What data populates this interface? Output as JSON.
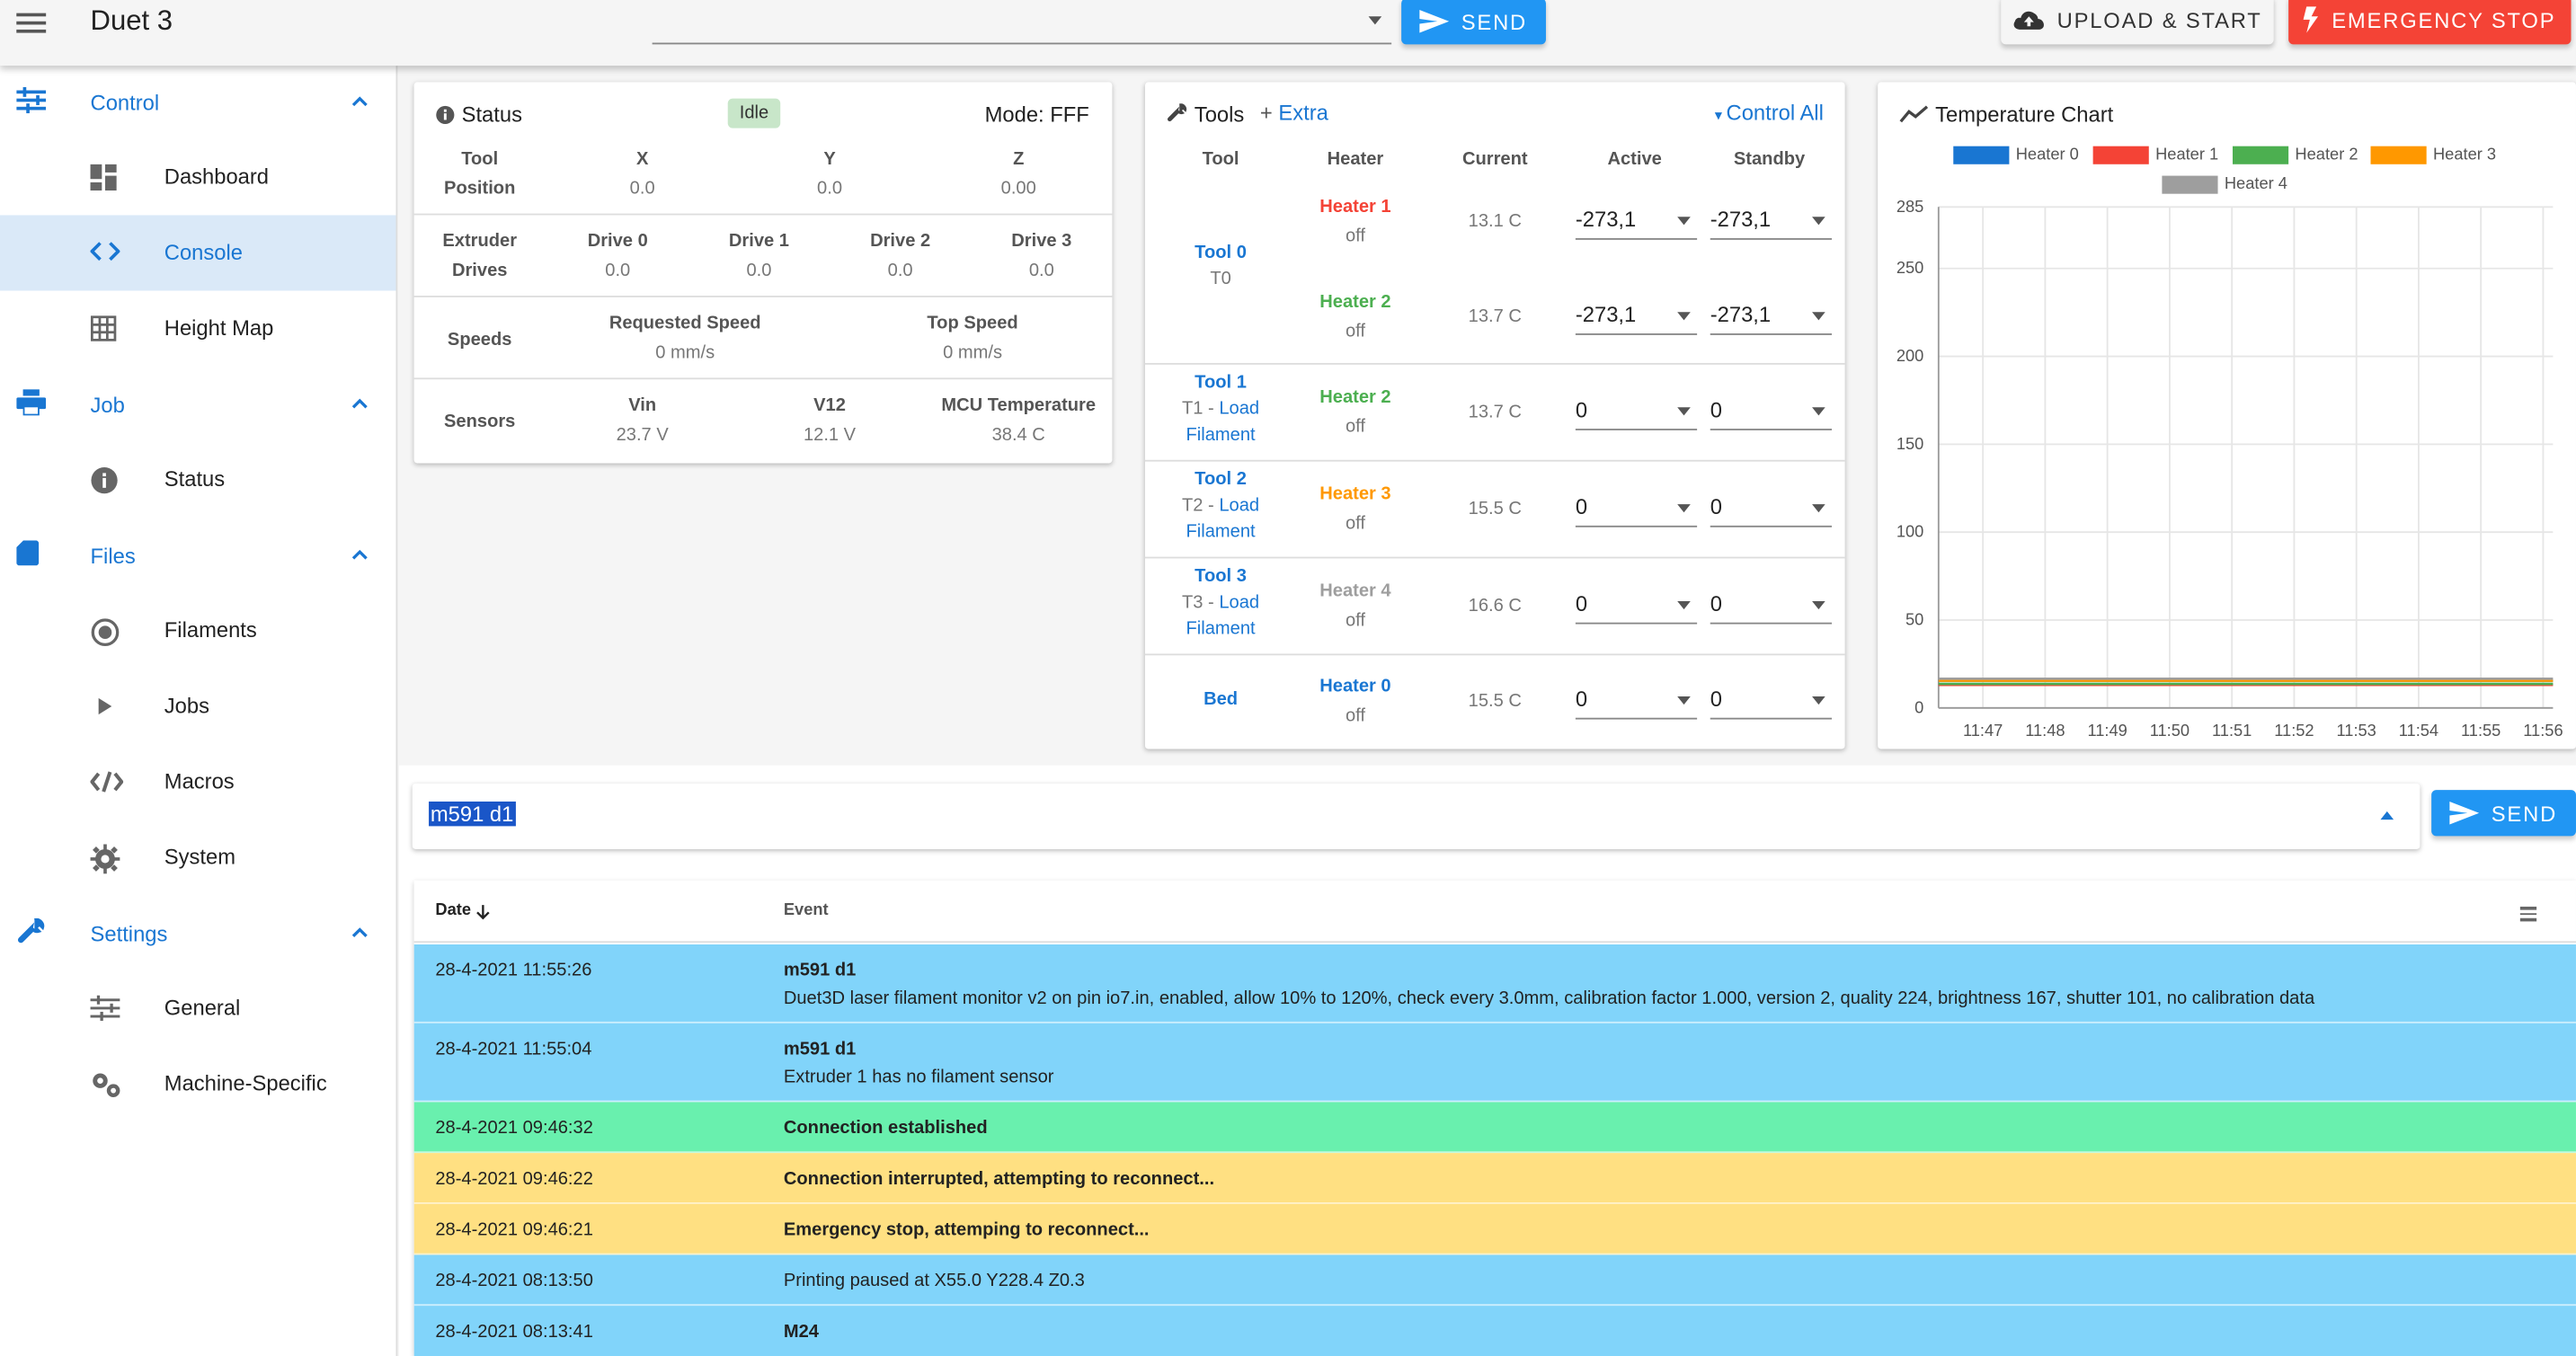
{
  "app": {
    "title": "Duet 3",
    "send_label": "SEND",
    "upload_label": "UPLOAD & START",
    "estop_label": "EMERGENCY STOP"
  },
  "sidebar": {
    "groups": [
      {
        "label": "Control",
        "items": [
          "Dashboard",
          "Console",
          "Height Map"
        ]
      },
      {
        "label": "Job",
        "items": [
          "Status"
        ]
      },
      {
        "label": "Files",
        "items": [
          "Filaments",
          "Jobs",
          "Macros",
          "System"
        ]
      },
      {
        "label": "Settings",
        "items": [
          "General",
          "Machine-Specific"
        ]
      }
    ],
    "active_item": "Console"
  },
  "status": {
    "title": "Status",
    "state": "Idle",
    "mode": "Mode: FFF",
    "tool_position": {
      "label1": "Tool",
      "label2": "Position",
      "axes": [
        {
          "name": "X",
          "value": "0.0"
        },
        {
          "name": "Y",
          "value": "0.0"
        },
        {
          "name": "Z",
          "value": "0.00"
        }
      ]
    },
    "extruder": {
      "label1": "Extruder",
      "label2": "Drives",
      "drives": [
        {
          "name": "Drive 0",
          "value": "0.0"
        },
        {
          "name": "Drive 1",
          "value": "0.0"
        },
        {
          "name": "Drive 2",
          "value": "0.0"
        },
        {
          "name": "Drive 3",
          "value": "0.0"
        }
      ]
    },
    "speeds": {
      "label": "Speeds",
      "requested_label": "Requested Speed",
      "requested": "0 mm/s",
      "top_label": "Top Speed",
      "top": "0 mm/s"
    },
    "sensors": {
      "label": "Sensors",
      "vin_label": "Vin",
      "vin": "23.7 V",
      "v12_label": "V12",
      "v12": "12.1 V",
      "mcu_label": "MCU Temperature",
      "mcu": "38.4 C"
    }
  },
  "tools": {
    "title": "Tools",
    "extra": "Extra",
    "control_all": "Control All",
    "headers": [
      "Tool",
      "Heater",
      "Current",
      "Active",
      "Standby"
    ],
    "load": "Load",
    "filament": "Filament",
    "rows": [
      {
        "tool": "Tool 0",
        "sub": "T0",
        "heater": "Heater 1",
        "heater_color": "#f44336",
        "state": "off",
        "current": "13.1 C",
        "active": "-273,1",
        "standby": "-273,1"
      },
      {
        "heater": "Heater 2",
        "heater_color": "#4caf50",
        "state": "off",
        "current": "13.7 C",
        "active": "-273,1",
        "standby": "-273,1"
      },
      {
        "tool": "Tool 1",
        "sub": "T1 - ",
        "heater": "Heater 2",
        "heater_color": "#4caf50",
        "state": "off",
        "current": "13.7 C",
        "active": "0",
        "standby": "0"
      },
      {
        "tool": "Tool 2",
        "sub": "T2 - ",
        "heater": "Heater 3",
        "heater_color": "#ff9800",
        "state": "off",
        "current": "15.5 C",
        "active": "0",
        "standby": "0"
      },
      {
        "tool": "Tool 3",
        "sub": "T3 - ",
        "heater": "Heater 4",
        "heater_color": "#9e9e9e",
        "state": "off",
        "current": "16.6 C",
        "active": "0",
        "standby": "0"
      },
      {
        "tool": "Bed",
        "heater": "Heater 0",
        "heater_color": "#1976d2",
        "state": "off",
        "current": "15.5 C",
        "active": "0",
        "standby": "0"
      }
    ]
  },
  "chart": {
    "title": "Temperature Chart"
  },
  "chart_data": {
    "type": "line",
    "title": "Temperature Chart",
    "xlabel": "",
    "ylabel": "",
    "ylim": [
      0,
      285
    ],
    "yticks": [
      0,
      50,
      100,
      150,
      200,
      250,
      285
    ],
    "x": [
      "11:47",
      "11:48",
      "11:49",
      "11:50",
      "11:51",
      "11:52",
      "11:53",
      "11:54",
      "11:55",
      "11:56"
    ],
    "series": [
      {
        "name": "Heater 0",
        "color": "#1976d2",
        "values": [
          15.5,
          15.5,
          15.5,
          15.5,
          15.5,
          15.5,
          15.5,
          15.5,
          15.5,
          15.5
        ]
      },
      {
        "name": "Heater 1",
        "color": "#f44336",
        "values": [
          13.1,
          13.1,
          13.1,
          13.1,
          13.1,
          13.1,
          13.1,
          13.1,
          13.1,
          13.1
        ]
      },
      {
        "name": "Heater 2",
        "color": "#4caf50",
        "values": [
          13.7,
          13.7,
          13.7,
          13.7,
          13.7,
          13.7,
          13.7,
          13.7,
          13.7,
          13.7
        ]
      },
      {
        "name": "Heater 3",
        "color": "#ff9800",
        "values": [
          15.5,
          15.5,
          15.5,
          15.5,
          15.5,
          15.5,
          15.5,
          15.5,
          15.5,
          15.5
        ]
      },
      {
        "name": "Heater 4",
        "color": "#9e9e9e",
        "values": [
          16.6,
          16.6,
          16.6,
          16.6,
          16.6,
          16.6,
          16.6,
          16.6,
          16.6,
          16.6
        ]
      }
    ],
    "grid": true,
    "legend": "top"
  },
  "console": {
    "command": "m591 d1",
    "send_label": "SEND",
    "date_header": "Date",
    "event_header": "Event",
    "rows": [
      {
        "date": "28-4-2021 11:55:26",
        "title": "m591 d1",
        "text": "Duet3D laser filament monitor v2 on pin io7.in, enabled, allow 10% to 120%, check every 3.0mm, calibration factor 1.000, version 2, quality 224, brightness 167, shutter 101, no calibration data",
        "kind": "info"
      },
      {
        "date": "28-4-2021 11:55:04",
        "title": "m591 d1",
        "text": "Extruder 1 has no filament sensor",
        "kind": "info"
      },
      {
        "date": "28-4-2021 09:46:32",
        "title": "Connection established",
        "text": "",
        "kind": "ok"
      },
      {
        "date": "28-4-2021 09:46:22",
        "title": "Connection interrupted, attempting to reconnect...",
        "text": "",
        "kind": "warn"
      },
      {
        "date": "28-4-2021 09:46:21",
        "title": "Emergency stop, attemping to reconnect...",
        "text": "",
        "kind": "warn"
      },
      {
        "date": "28-4-2021 08:13:50",
        "title": "",
        "text": "Printing paused at X55.0 Y228.4 Z0.3",
        "kind": "info"
      },
      {
        "date": "28-4-2021 08:13:41",
        "title": "M24",
        "text": "",
        "kind": "info"
      }
    ]
  }
}
